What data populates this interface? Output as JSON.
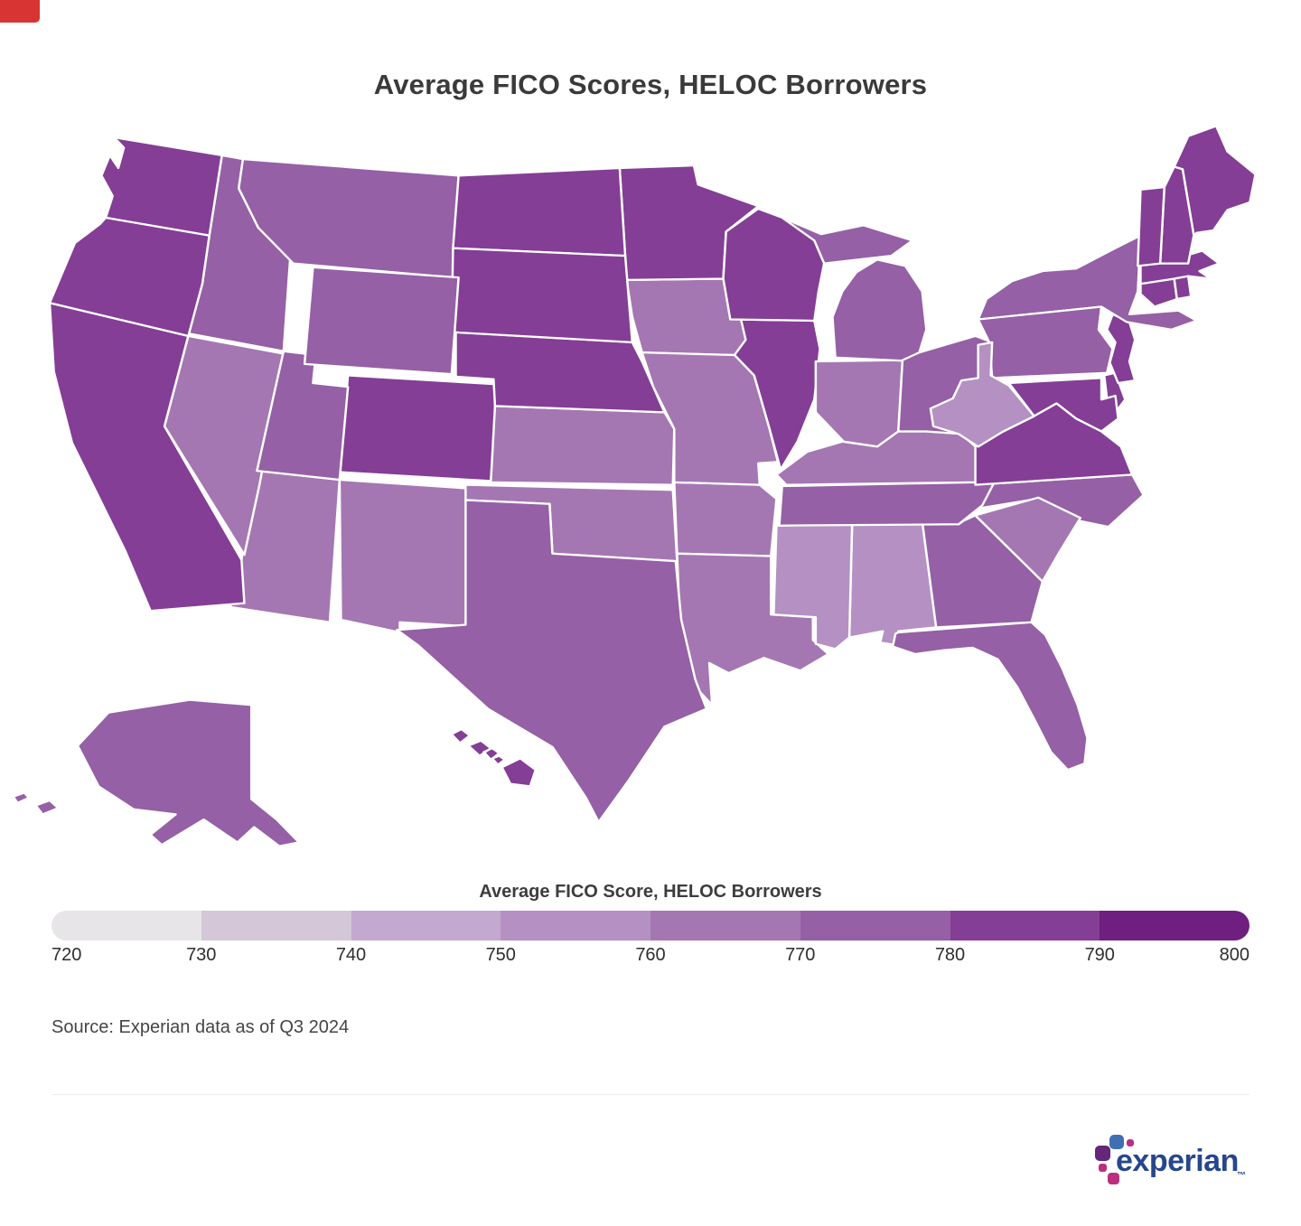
{
  "title_text": "Average FICO Scores, HELOC Borrowers",
  "source_text": "Source: Experian data as of Q3 2024",
  "misc": {
    "corner_tab_color": "#d93434",
    "divider_color": "#ececec"
  },
  "logo": {
    "brand_text": "experian",
    "trademark": "™",
    "colors": {
      "text": "#26478d",
      "blue_square": "#406eb3",
      "purple_square": "#632678",
      "magenta_square": "#ba2f7d",
      "pink_dot": "#ba2f7d"
    }
  },
  "chart_data": {
    "type": "choropleth_map",
    "map_region": "United States (50 states)",
    "title": "Average FICO Scores, HELOC Borrowers",
    "legend": {
      "label": "Average FICO Score, HELOC Borrowers",
      "position": "bottom",
      "min": 720,
      "max": 800,
      "step": 10,
      "ticks": [
        720,
        730,
        740,
        750,
        760,
        770,
        780,
        790,
        800
      ],
      "bucket_colors": [
        "#e7e5e7",
        "#d3c7d8",
        "#c3a9cf",
        "#b491c2",
        "#a577b2",
        "#9560a5",
        "#843e95",
        "#6e1f80"
      ]
    },
    "values_note": "No numeric labels are printed on the map; state values are estimated from each state's fill shade against the 720-800 color scale.",
    "states": [
      {
        "abbr": "AL",
        "name": "Alabama",
        "value": 752
      },
      {
        "abbr": "AK",
        "name": "Alaska",
        "value": 771
      },
      {
        "abbr": "AZ",
        "name": "Arizona",
        "value": 767
      },
      {
        "abbr": "AR",
        "name": "Arkansas",
        "value": 761
      },
      {
        "abbr": "CA",
        "name": "California",
        "value": 784
      },
      {
        "abbr": "CO",
        "name": "Colorado",
        "value": 782
      },
      {
        "abbr": "CT",
        "name": "Connecticut",
        "value": 786
      },
      {
        "abbr": "DE",
        "name": "Delaware",
        "value": 784
      },
      {
        "abbr": "FL",
        "name": "Florida",
        "value": 773
      },
      {
        "abbr": "GA",
        "name": "Georgia",
        "value": 771
      },
      {
        "abbr": "HI",
        "name": "Hawaii",
        "value": 782
      },
      {
        "abbr": "ID",
        "name": "Idaho",
        "value": 775
      },
      {
        "abbr": "IL",
        "name": "Illinois",
        "value": 785
      },
      {
        "abbr": "IN",
        "name": "Indiana",
        "value": 768
      },
      {
        "abbr": "IA",
        "name": "Iowa",
        "value": 767
      },
      {
        "abbr": "KS",
        "name": "Kansas",
        "value": 765
      },
      {
        "abbr": "KY",
        "name": "Kentucky",
        "value": 766
      },
      {
        "abbr": "LA",
        "name": "Louisiana",
        "value": 763
      },
      {
        "abbr": "ME",
        "name": "Maine",
        "value": 781
      },
      {
        "abbr": "MD",
        "name": "Maryland",
        "value": 788
      },
      {
        "abbr": "MA",
        "name": "Massachusetts",
        "value": 787
      },
      {
        "abbr": "MI",
        "name": "Michigan",
        "value": 773
      },
      {
        "abbr": "MN",
        "name": "Minnesota",
        "value": 787
      },
      {
        "abbr": "MS",
        "name": "Mississippi",
        "value": 752
      },
      {
        "abbr": "MO",
        "name": "Missouri",
        "value": 764
      },
      {
        "abbr": "MT",
        "name": "Montana",
        "value": 774
      },
      {
        "abbr": "NE",
        "name": "Nebraska",
        "value": 781
      },
      {
        "abbr": "NV",
        "name": "Nevada",
        "value": 764
      },
      {
        "abbr": "NH",
        "name": "New Hampshire",
        "value": 783
      },
      {
        "abbr": "NJ",
        "name": "New Jersey",
        "value": 787
      },
      {
        "abbr": "NM",
        "name": "New Mexico",
        "value": 767
      },
      {
        "abbr": "NY",
        "name": "New York",
        "value": 772
      },
      {
        "abbr": "NC",
        "name": "North Carolina",
        "value": 771
      },
      {
        "abbr": "ND",
        "name": "North Dakota",
        "value": 784
      },
      {
        "abbr": "OH",
        "name": "Ohio",
        "value": 771
      },
      {
        "abbr": "OK",
        "name": "Oklahoma",
        "value": 762
      },
      {
        "abbr": "OR",
        "name": "Oregon",
        "value": 782
      },
      {
        "abbr": "PA",
        "name": "Pennsylvania",
        "value": 771
      },
      {
        "abbr": "RI",
        "name": "Rhode Island",
        "value": 784
      },
      {
        "abbr": "SC",
        "name": "South Carolina",
        "value": 765
      },
      {
        "abbr": "SD",
        "name": "South Dakota",
        "value": 783
      },
      {
        "abbr": "TN",
        "name": "Tennessee",
        "value": 771
      },
      {
        "abbr": "TX",
        "name": "Texas",
        "value": 772
      },
      {
        "abbr": "UT",
        "name": "Utah",
        "value": 773
      },
      {
        "abbr": "VT",
        "name": "Vermont",
        "value": 782
      },
      {
        "abbr": "VA",
        "name": "Virginia",
        "value": 786
      },
      {
        "abbr": "WA",
        "name": "Washington",
        "value": 785
      },
      {
        "abbr": "WV",
        "name": "West Virginia",
        "value": 753
      },
      {
        "abbr": "WI",
        "name": "Wisconsin",
        "value": 786
      },
      {
        "abbr": "WY",
        "name": "Wyoming",
        "value": 772
      }
    ]
  }
}
